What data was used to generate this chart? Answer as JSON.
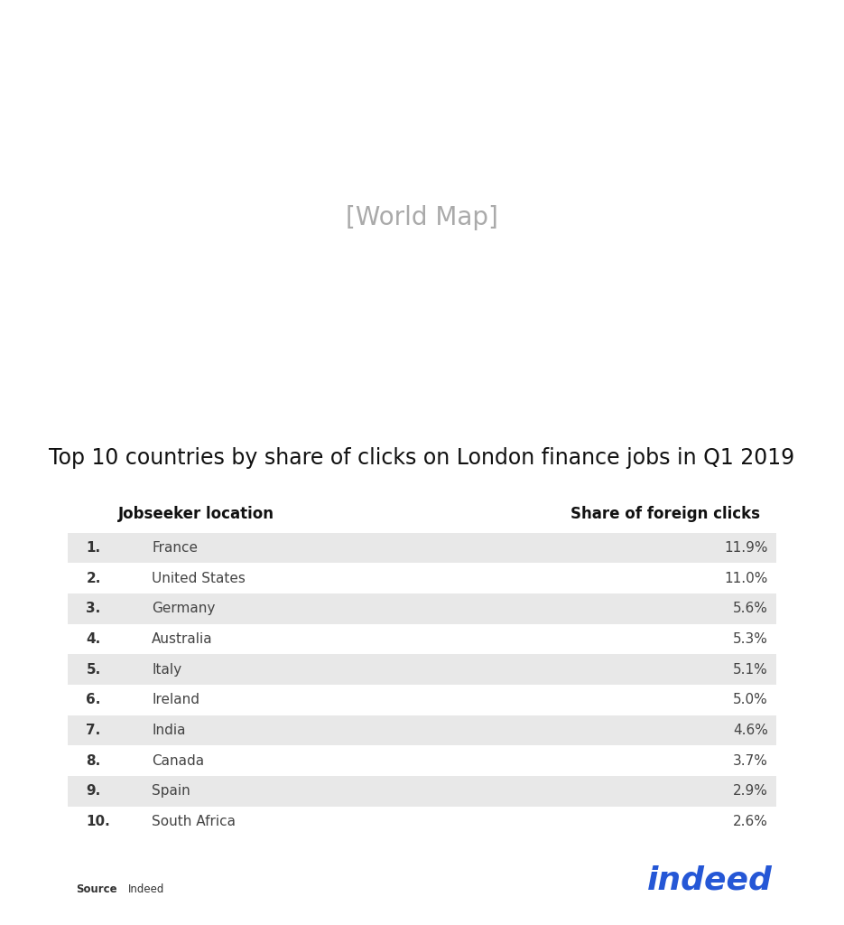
{
  "title": "Top 10 countries by share of clicks on London finance jobs in Q1 2019",
  "col_header_left": "Jobseeker location",
  "col_header_right": "Share of foreign clicks",
  "source_label": "Source",
  "source_value": ": Indeed",
  "rankings": [
    {
      "rank": "1.",
      "country": "France",
      "share": "11.9%"
    },
    {
      "rank": "2.",
      "country": "United States",
      "share": "11.0%"
    },
    {
      "rank": "3.",
      "country": "Germany",
      "share": "5.6%"
    },
    {
      "rank": "4.",
      "country": "Australia",
      "share": "5.3%"
    },
    {
      "rank": "5.",
      "country": "Italy",
      "share": "5.1%"
    },
    {
      "rank": "6.",
      "country": "Ireland",
      "share": "5.0%"
    },
    {
      "rank": "7.",
      "country": "India",
      "share": "4.6%"
    },
    {
      "rank": "8.",
      "country": "Canada",
      "share": "3.7%"
    },
    {
      "rank": "9.",
      "country": "Spain",
      "share": "2.9%"
    },
    {
      "rank": "10.",
      "country": "South Africa",
      "share": "2.6%"
    }
  ],
  "row_colors": [
    "#e8e8e8",
    "#ffffff",
    "#e8e8e8",
    "#ffffff",
    "#e8e8e8",
    "#ffffff",
    "#e8e8e8",
    "#ffffff",
    "#e8e8e8",
    "#ffffff"
  ],
  "background_color": "#ffffff",
  "land_color": "#808080",
  "border_color": "#999999",
  "title_fontsize": 17,
  "header_fontsize": 12,
  "row_fontsize": 11,
  "indeed_color": "#2557D6",
  "flag_data": {
    "France": {
      "type": "tricolor_v",
      "stripes": [
        "#002395",
        "#ffffff",
        "#ED2939"
      ]
    },
    "United States": {
      "type": "usa"
    },
    "Germany": {
      "type": "tricolor_h",
      "stripes": [
        "#000000",
        "#DD0000",
        "#FFCE00"
      ]
    },
    "Australia": {
      "type": "australia"
    },
    "Italy": {
      "type": "tricolor_v",
      "stripes": [
        "#009246",
        "#ffffff",
        "#CE2B37"
      ]
    },
    "Ireland": {
      "type": "tricolor_v",
      "stripes": [
        "#169B62",
        "#ffffff",
        "#FF883E"
      ]
    },
    "India": {
      "type": "tricolor_h",
      "stripes": [
        "#FF9933",
        "#ffffff",
        "#138808"
      ]
    },
    "Canada": {
      "type": "canada"
    },
    "Spain": {
      "type": "tricolor_h",
      "stripes": [
        "#AA151B",
        "#F1BF00",
        "#AA151B"
      ]
    },
    "South Africa": {
      "type": "south_africa"
    }
  },
  "country_name_map": {
    "France": "France",
    "United States": "United States of America",
    "Germany": "Germany",
    "Australia": "Australia",
    "Italy": "Italy",
    "Ireland": "Ireland",
    "India": "India",
    "Canada": "Canada",
    "Spain": "Spain",
    "South Africa": "South Africa"
  }
}
